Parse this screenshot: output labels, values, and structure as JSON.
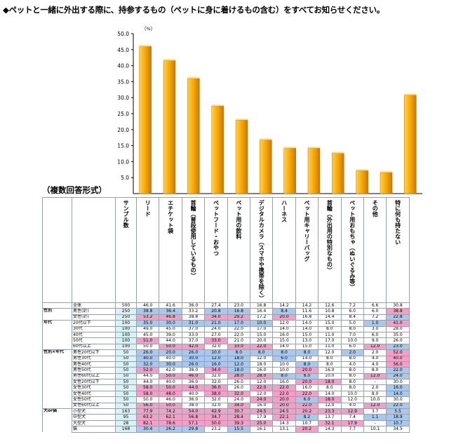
{
  "page": {
    "title": "◆ペットと一緒に外出する際に、持参するもの（ペットに身に着けるもの含む）をすべてお知らせください。",
    "format_label": "（複数回答形式）"
  },
  "colors": {
    "bar_top": "#ffd24a",
    "bar_mid": "#f5a300",
    "bar_side": "#c87800",
    "high": "#f2a0c8",
    "low": "#a8c8ee",
    "count": "#d8f2f8"
  },
  "chart_data": {
    "type": "bar",
    "unit": "（%）",
    "ylim": [
      0,
      50
    ],
    "yticks": [
      "5.0",
      "10.0",
      "15.0",
      "20.0",
      "25.0",
      "30.0",
      "35.0",
      "40.0",
      "45.0",
      "50.0"
    ],
    "categories": [
      "リード",
      "エチケット袋",
      "首輪（普段使用しているもの）",
      "ペットフード・おやつ",
      "ペット用の飲料",
      "デジタルカメラ（スマホや携帯を除く）",
      "ハーネス",
      "ペット用キャリーバッグ",
      "首輪（外出用の特別なもの）",
      "ペット用おもちゃ（ぬいぐるみ等）",
      "その他",
      "特に何も持たない"
    ],
    "values": [
      46.0,
      41.6,
      36.0,
      27.4,
      23.0,
      16.8,
      14.2,
      14.2,
      12.6,
      7.2,
      6.6,
      30.8
    ]
  },
  "table": {
    "sample_header": "サンプル数",
    "rows": [
      {
        "group": "",
        "label": "全体",
        "n": "500",
        "v": [
          "46.0",
          "41.6",
          "36.0",
          "27.4",
          "23.0",
          "16.8",
          "14.2",
          "14.2",
          "12.6",
          "7.2",
          "6.6",
          "30.8"
        ],
        "h": "",
        "l": ""
      },
      {
        "group": "性別",
        "label": "男性(計)",
        "n": "250",
        "v": [
          "38.8",
          "36.4",
          "33.2",
          "20.8",
          "16.8",
          "16.4",
          "8.4",
          "11.6",
          "10.8",
          "6.0",
          "6.0",
          "38.8"
        ],
        "h": "",
        "l": ""
      },
      {
        "group": "",
        "label": "女性(計)",
        "n": "250",
        "v": [
          "53.2",
          "46.8",
          "38.8",
          "34.0",
          "29.2",
          "17.2",
          "20.0",
          "16.8",
          "14.4",
          "8.4",
          "7.2",
          "22.8"
        ],
        "h": "",
        "l": ""
      },
      {
        "group": "年代",
        "label": "20代以下",
        "n": "100",
        "v": [
          "35.0",
          "30.0",
          "31.0",
          "21.0",
          "17.0",
          "10.0",
          "12.0",
          "14.0",
          "15.0",
          "5.0",
          "1.0",
          "41.0"
        ],
        "h": "",
        "l": ""
      },
      {
        "group": "",
        "label": "30代",
        "n": "100",
        "v": [
          "49.0",
          "45.0",
          "37.0",
          "24.0",
          "22.0",
          "17.0",
          "14.0",
          "14.0",
          "8.0",
          "8.0",
          "3.0",
          "28.0"
        ],
        "h": "",
        "l": ""
      },
      {
        "group": "",
        "label": "40代",
        "n": "100",
        "v": [
          "45.0",
          "39.0",
          "33.0",
          "27.0",
          "22.0",
          "15.0",
          "16.0",
          "15.0",
          "11.0",
          "7.0",
          "6.0",
          "35.0"
        ],
        "h": "",
        "l": ""
      },
      {
        "group": "",
        "label": "50代",
        "n": "100",
        "v": [
          "51.0",
          "44.0",
          "37.0",
          "33.0",
          "21.0",
          "20.0",
          "15.0",
          "13.0",
          "17.0",
          "10.0",
          "9.0",
          "26.0"
        ],
        "h": "",
        "l": ""
      },
      {
        "group": "",
        "label": "60代以上",
        "n": "100",
        "v": [
          "50.0",
          "50.0",
          "42.0",
          "32.0",
          "33.0",
          "22.0",
          "14.0",
          "15.0",
          "11.0",
          "6.0",
          "12.0",
          "23.0"
        ],
        "h": "",
        "l": ""
      },
      {
        "group": "性別×年代",
        "label": "男性20代以下",
        "n": "50",
        "v": [
          "26.0",
          "20.0",
          "26.0",
          "10.0",
          "8.0",
          "8.0",
          "8.0",
          "8.0",
          "12.0",
          "2.0",
          "2.0",
          "52.0"
        ],
        "h": "",
        "l": ""
      },
      {
        "group": "",
        "label": "男性30代",
        "n": "50",
        "v": [
          "40.0",
          "40.0",
          "30.0",
          "12.0",
          "18.0",
          "12.0",
          "6.0",
          "14.0",
          "8.0",
          "8.0",
          "4.0",
          "40.0"
        ],
        "h": "",
        "l": ""
      },
      {
        "group": "",
        "label": "男性40代",
        "n": "50",
        "v": [
          "32.0",
          "30.0",
          "26.0",
          "16.0",
          "12.0",
          "18.0",
          "10.0",
          "8.0",
          "8.0",
          "4.0",
          "4.0",
          "56.0"
        ],
        "h": "",
        "l": ""
      },
      {
        "group": "",
        "label": "男性50代",
        "n": "50",
        "v": [
          "52.0",
          "42.0",
          "38.0",
          "34.0",
          "18.0",
          "16.0",
          "10.0",
          "20.0",
          "16.0",
          "8.0",
          "8.0",
          "22.0"
        ],
        "h": "",
        "l": ""
      },
      {
        "group": "",
        "label": "男性60代以上",
        "n": "50",
        "v": [
          "44.0",
          "50.0",
          "46.0",
          "32.0",
          "28.0",
          "28.0",
          "8.0",
          "8.0",
          "10.0",
          "8.0",
          "12.0",
          "24.0"
        ],
        "h": "",
        "l": ""
      },
      {
        "group": "",
        "label": "女性20代以下",
        "n": "50",
        "v": [
          "44.0",
          "40.0",
          "36.0",
          "32.0",
          "26.0",
          "12.0",
          "16.0",
          "20.0",
          "18.0",
          "8.0",
          "-",
          "30.0"
        ],
        "h": "",
        "l": ""
      },
      {
        "group": "",
        "label": "女性30代",
        "n": "50",
        "v": [
          "58.0",
          "50.0",
          "44.0",
          "36.0",
          "26.0",
          "22.0",
          "22.0",
          "16.0",
          "8.0",
          "8.0",
          "2.0",
          "16.0"
        ],
        "h": "",
        "l": ""
      },
      {
        "group": "",
        "label": "女性40代",
        "n": "50",
        "v": [
          "58.0",
          "48.0",
          "40.0",
          "38.0",
          "32.0",
          "12.0",
          "22.0",
          "22.0",
          "14.0",
          "10.0",
          "8.0",
          "14.0"
        ],
        "h": "",
        "l": ""
      },
      {
        "group": "",
        "label": "女性50代",
        "n": "50",
        "v": [
          "50.0",
          "46.0",
          "36.0",
          "32.0",
          "24.0",
          "24.0",
          "20.0",
          "6.0",
          "18.0",
          "12.0",
          "10.0",
          "30.0"
        ],
        "h": "",
        "l": ""
      },
      {
        "group": "",
        "label": "女性60代以上",
        "n": "50",
        "v": [
          "56.0",
          "50.0",
          "38.0",
          "32.0",
          "34.0",
          "16.0",
          "20.0",
          "22.0",
          "12.0",
          "4.0",
          "12.0",
          "22.0"
        ],
        "h": "",
        "l": ""
      },
      {
        "group": "犬or猫",
        "label": "小型犬",
        "n": "163",
        "v": [
          "77.9",
          "74.2",
          "54.0",
          "42.9",
          "30.7",
          "24.5",
          "24.5",
          "20.2",
          "23.3",
          "12.9",
          "3.7",
          "5.5"
        ],
        "h": "",
        "l": ""
      },
      {
        "group": "",
        "label": "中型犬",
        "n": "95",
        "v": [
          "63.2",
          "62.1",
          "56.8",
          "34.7",
          "28.4",
          "17.9",
          "22.1",
          "8.2",
          "13.7",
          "7.4",
          "1.1",
          "18.9"
        ],
        "h": "",
        "l": ""
      },
      {
        "group": "",
        "label": "大型犬",
        "n": "28",
        "v": [
          "82.1",
          "78.6",
          "57.1",
          "50.0",
          "39.3",
          "25.0",
          "14.3",
          "10.7",
          "32.1",
          "17.9",
          "-",
          "10.7"
        ],
        "h": "",
        "l": ""
      },
      {
        "group": "",
        "label": "猫",
        "n": "168",
        "v": [
          "30.4",
          "26.2",
          "29.8",
          "23.2",
          "15.5",
          "16.1",
          "13.1",
          "20.2",
          "14.3",
          "7.7",
          "10.1",
          "34.5"
        ],
        "h": "",
        "l": ""
      }
    ]
  }
}
